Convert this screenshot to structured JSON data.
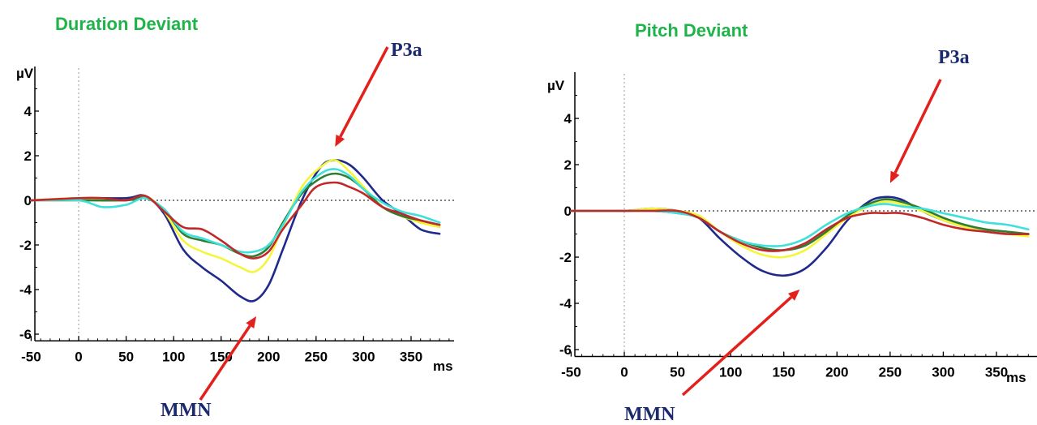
{
  "colors": {
    "title": "#1fb34a",
    "annotation_text": "#1a2a6c",
    "arrow": "#e3211c",
    "axis": "#000000",
    "zero_line": "#333333"
  },
  "chart_data": [
    {
      "type": "line",
      "title": "Duration Deviant",
      "ylabel": "µV",
      "xunit": "ms",
      "xlim": [
        -50,
        395
      ],
      "ylim": [
        -6.3,
        6.0
      ],
      "xticks": [
        -50,
        0,
        50,
        100,
        150,
        200,
        250,
        300,
        350
      ],
      "xtick_labels": [
        "-50",
        "0",
        "50",
        "100",
        "150",
        "200",
        "250",
        "300",
        "350"
      ],
      "yticks": [
        4,
        2,
        0,
        -2,
        -4,
        -6
      ],
      "ytick_labels": [
        "4",
        "2",
        "0",
        "-2",
        "-4",
        "-6"
      ],
      "grid": false,
      "series": [
        {
          "color": "#1f2a8c",
          "points": [
            [
              -50,
              0
            ],
            [
              0,
              0.1
            ],
            [
              50,
              0.1
            ],
            [
              70,
              0.2
            ],
            [
              90,
              -0.6
            ],
            [
              110,
              -2.2
            ],
            [
              130,
              -3.0
            ],
            [
              150,
              -3.6
            ],
            [
              170,
              -4.3
            ],
            [
              185,
              -4.5
            ],
            [
              200,
              -3.8
            ],
            [
              215,
              -2.2
            ],
            [
              235,
              0.0
            ],
            [
              255,
              1.5
            ],
            [
              270,
              1.8
            ],
            [
              285,
              1.6
            ],
            [
              300,
              1.0
            ],
            [
              320,
              0.0
            ],
            [
              340,
              -0.6
            ],
            [
              360,
              -1.3
            ],
            [
              380,
              -1.5
            ]
          ]
        },
        {
          "color": "#f5f53c",
          "points": [
            [
              -50,
              0
            ],
            [
              0,
              0.1
            ],
            [
              50,
              0.0
            ],
            [
              70,
              0.2
            ],
            [
              90,
              -0.5
            ],
            [
              110,
              -1.8
            ],
            [
              130,
              -2.3
            ],
            [
              150,
              -2.6
            ],
            [
              170,
              -3.0
            ],
            [
              185,
              -3.2
            ],
            [
              200,
              -2.6
            ],
            [
              215,
              -1.2
            ],
            [
              235,
              0.6
            ],
            [
              255,
              1.5
            ],
            [
              270,
              1.8
            ],
            [
              285,
              1.3
            ],
            [
              300,
              0.6
            ],
            [
              320,
              -0.3
            ],
            [
              340,
              -0.7
            ],
            [
              360,
              -1.0
            ],
            [
              380,
              -1.2
            ]
          ]
        },
        {
          "color": "#2f7d32",
          "points": [
            [
              -50,
              0
            ],
            [
              0,
              0.0
            ],
            [
              50,
              0.0
            ],
            [
              70,
              0.1
            ],
            [
              90,
              -0.4
            ],
            [
              110,
              -1.5
            ],
            [
              130,
              -1.8
            ],
            [
              150,
              -2.0
            ],
            [
              170,
              -2.4
            ],
            [
              185,
              -2.5
            ],
            [
              200,
              -2.1
            ],
            [
              215,
              -1.0
            ],
            [
              235,
              0.3
            ],
            [
              255,
              1.0
            ],
            [
              270,
              1.2
            ],
            [
              285,
              1.0
            ],
            [
              300,
              0.5
            ],
            [
              320,
              -0.3
            ],
            [
              340,
              -0.7
            ],
            [
              360,
              -0.9
            ],
            [
              380,
              -1.1
            ]
          ]
        },
        {
          "color": "#3fe0dc",
          "points": [
            [
              -50,
              0
            ],
            [
              0,
              0.0
            ],
            [
              25,
              -0.3
            ],
            [
              50,
              -0.2
            ],
            [
              70,
              0.1
            ],
            [
              90,
              -0.4
            ],
            [
              110,
              -1.4
            ],
            [
              130,
              -1.7
            ],
            [
              150,
              -2.0
            ],
            [
              170,
              -2.3
            ],
            [
              185,
              -2.3
            ],
            [
              200,
              -2.0
            ],
            [
              215,
              -1.1
            ],
            [
              235,
              0.4
            ],
            [
              255,
              1.2
            ],
            [
              270,
              1.4
            ],
            [
              285,
              1.1
            ],
            [
              300,
              0.5
            ],
            [
              320,
              -0.1
            ],
            [
              340,
              -0.5
            ],
            [
              360,
              -0.7
            ],
            [
              380,
              -1.0
            ]
          ]
        },
        {
          "color": "#c0282a",
          "points": [
            [
              -50,
              0
            ],
            [
              0,
              0.1
            ],
            [
              25,
              0.1
            ],
            [
              50,
              0.0
            ],
            [
              70,
              0.2
            ],
            [
              90,
              -0.5
            ],
            [
              110,
              -1.2
            ],
            [
              130,
              -1.3
            ],
            [
              150,
              -1.8
            ],
            [
              170,
              -2.4
            ],
            [
              185,
              -2.6
            ],
            [
              200,
              -2.3
            ],
            [
              215,
              -1.3
            ],
            [
              235,
              -0.2
            ],
            [
              250,
              0.6
            ],
            [
              270,
              0.8
            ],
            [
              285,
              0.6
            ],
            [
              300,
              0.3
            ],
            [
              320,
              -0.3
            ],
            [
              340,
              -0.6
            ],
            [
              360,
              -0.9
            ],
            [
              380,
              -1.1
            ]
          ]
        }
      ],
      "annotations": [
        {
          "label": "P3a",
          "points_to": [
            270,
            2.4
          ]
        },
        {
          "label": "MMN",
          "points_to": [
            187,
            -5.2
          ]
        }
      ]
    },
    {
      "type": "line",
      "title": "Pitch Deviant",
      "ylabel": "µV",
      "xunit": "ms",
      "xlim": [
        -50,
        395
      ],
      "ylim": [
        -6.3,
        6.0
      ],
      "xticks": [
        -50,
        0,
        50,
        100,
        150,
        200,
        250,
        300,
        350
      ],
      "xtick_labels": [
        "-50",
        "0",
        "50",
        "100",
        "150",
        "200",
        "250",
        "300",
        "350"
      ],
      "yticks": [
        4,
        2,
        0,
        -2,
        -4,
        -6
      ],
      "ytick_labels": [
        "4",
        "2",
        "0",
        "-2",
        "-4",
        "-6"
      ],
      "grid": false,
      "series": [
        {
          "color": "#1f2a8c",
          "points": [
            [
              -50,
              0
            ],
            [
              0,
              0.0
            ],
            [
              25,
              0.1
            ],
            [
              50,
              0.0
            ],
            [
              70,
              -0.3
            ],
            [
              90,
              -1.2
            ],
            [
              110,
              -2.0
            ],
            [
              130,
              -2.6
            ],
            [
              150,
              -2.8
            ],
            [
              170,
              -2.5
            ],
            [
              190,
              -1.6
            ],
            [
              210,
              -0.4
            ],
            [
              230,
              0.4
            ],
            [
              245,
              0.6
            ],
            [
              260,
              0.5
            ],
            [
              280,
              0.0
            ],
            [
              300,
              -0.4
            ],
            [
              320,
              -0.7
            ],
            [
              340,
              -0.9
            ],
            [
              360,
              -1.0
            ],
            [
              380,
              -1.0
            ]
          ]
        },
        {
          "color": "#f5f53c",
          "points": [
            [
              -50,
              0
            ],
            [
              0,
              0.0
            ],
            [
              25,
              0.1
            ],
            [
              50,
              0.0
            ],
            [
              70,
              -0.2
            ],
            [
              90,
              -0.9
            ],
            [
              110,
              -1.5
            ],
            [
              130,
              -1.9
            ],
            [
              150,
              -2.0
            ],
            [
              170,
              -1.7
            ],
            [
              190,
              -1.0
            ],
            [
              210,
              -0.3
            ],
            [
              230,
              0.2
            ],
            [
              245,
              0.4
            ],
            [
              260,
              0.3
            ],
            [
              280,
              0.0
            ],
            [
              300,
              -0.4
            ],
            [
              320,
              -0.7
            ],
            [
              340,
              -0.9
            ],
            [
              360,
              -1.0
            ],
            [
              380,
              -1.1
            ]
          ]
        },
        {
          "color": "#2f7d32",
          "points": [
            [
              -50,
              0
            ],
            [
              0,
              0.0
            ],
            [
              25,
              0.0
            ],
            [
              50,
              -0.1
            ],
            [
              70,
              -0.3
            ],
            [
              90,
              -0.9
            ],
            [
              110,
              -1.3
            ],
            [
              130,
              -1.6
            ],
            [
              150,
              -1.7
            ],
            [
              170,
              -1.5
            ],
            [
              190,
              -0.9
            ],
            [
              210,
              -0.2
            ],
            [
              230,
              0.3
            ],
            [
              245,
              0.5
            ],
            [
              260,
              0.4
            ],
            [
              280,
              0.1
            ],
            [
              300,
              -0.3
            ],
            [
              320,
              -0.6
            ],
            [
              340,
              -0.8
            ],
            [
              360,
              -0.9
            ],
            [
              380,
              -1.0
            ]
          ]
        },
        {
          "color": "#3fe0dc",
          "points": [
            [
              -50,
              0
            ],
            [
              0,
              0.0
            ],
            [
              25,
              0.0
            ],
            [
              50,
              -0.1
            ],
            [
              70,
              -0.3
            ],
            [
              90,
              -0.9
            ],
            [
              110,
              -1.3
            ],
            [
              130,
              -1.5
            ],
            [
              150,
              -1.5
            ],
            [
              170,
              -1.2
            ],
            [
              190,
              -0.6
            ],
            [
              210,
              -0.1
            ],
            [
              230,
              0.2
            ],
            [
              245,
              0.3
            ],
            [
              260,
              0.2
            ],
            [
              280,
              0.1
            ],
            [
              300,
              -0.1
            ],
            [
              320,
              -0.3
            ],
            [
              340,
              -0.5
            ],
            [
              360,
              -0.6
            ],
            [
              380,
              -0.8
            ]
          ]
        },
        {
          "color": "#c0282a",
          "points": [
            [
              -50,
              0
            ],
            [
              0,
              0.0
            ],
            [
              25,
              0.0
            ],
            [
              50,
              0.0
            ],
            [
              70,
              -0.3
            ],
            [
              90,
              -0.9
            ],
            [
              110,
              -1.4
            ],
            [
              130,
              -1.7
            ],
            [
              150,
              -1.7
            ],
            [
              170,
              -1.4
            ],
            [
              190,
              -0.8
            ],
            [
              210,
              -0.3
            ],
            [
              230,
              -0.1
            ],
            [
              245,
              -0.1
            ],
            [
              260,
              -0.1
            ],
            [
              280,
              -0.3
            ],
            [
              300,
              -0.6
            ],
            [
              320,
              -0.8
            ],
            [
              340,
              -0.9
            ],
            [
              360,
              -1.0
            ],
            [
              380,
              -1.0
            ]
          ]
        }
      ],
      "annotations": [
        {
          "label": "P3a",
          "points_to": [
            250,
            1.2
          ]
        },
        {
          "label": "MMN",
          "points_to": [
            165,
            -3.4
          ]
        }
      ]
    }
  ]
}
